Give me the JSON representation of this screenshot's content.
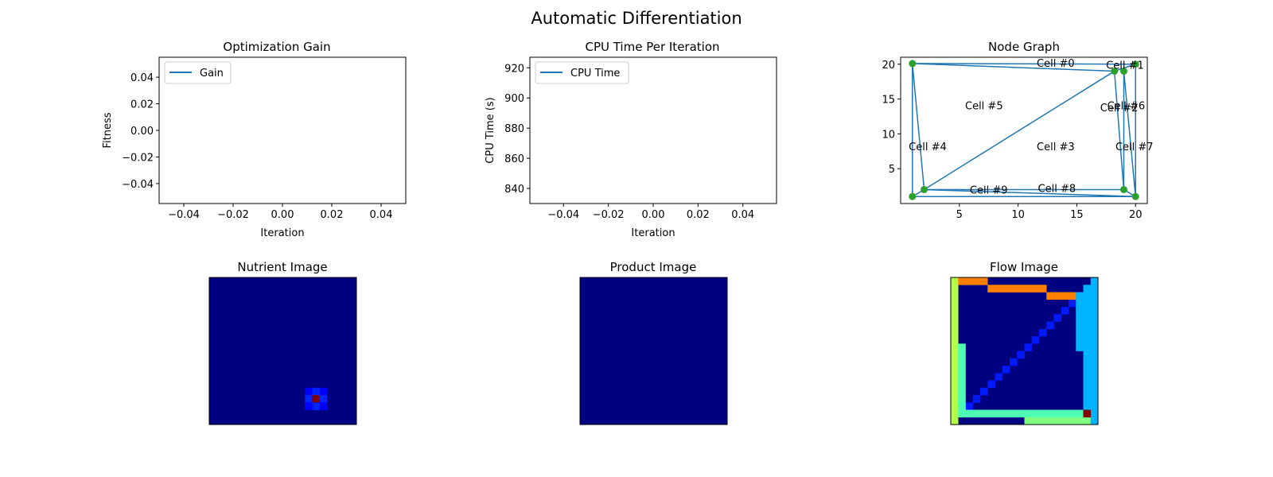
{
  "figure": {
    "suptitle": "Automatic Differentiation"
  },
  "colors": {
    "line": "#1f77b4",
    "marker": "#2ca02c",
    "axes": "#000000",
    "legend_border": "#cccccc",
    "jet_low": "#000080"
  },
  "chart_data": [
    {
      "type": "line",
      "title": "Optimization Gain",
      "xlabel": "Iteration",
      "ylabel": "Fitness",
      "xlim": [
        -0.05,
        0.05
      ],
      "ylim": [
        -0.055,
        0.055
      ],
      "xticks": [
        "−0.04",
        "−0.02",
        "0.00",
        "0.02",
        "0.04"
      ],
      "yticks": [
        "−0.04",
        "−0.02",
        "0.00",
        "0.02",
        "0.04"
      ],
      "legend": "upper left",
      "series": [
        {
          "name": "Gain",
          "x": [],
          "y": []
        }
      ]
    },
    {
      "type": "line",
      "title": "CPU Time Per Iteration",
      "xlabel": "Iteration",
      "ylabel": "CPU Time (s)",
      "xlim": [
        -0.055,
        0.055
      ],
      "ylim": [
        830,
        927
      ],
      "xticks": [
        "−0.04",
        "−0.02",
        "0.00",
        "0.02",
        "0.04"
      ],
      "yticks": [
        "840",
        "860",
        "880",
        "900",
        "920"
      ],
      "legend": "upper left",
      "series": [
        {
          "name": "CPU Time",
          "x": [],
          "y": []
        }
      ]
    },
    {
      "type": "scatter",
      "title": "Node Graph",
      "xlim": [
        0,
        21
      ],
      "ylim": [
        0,
        21
      ],
      "xticks": [
        "5",
        "10",
        "15",
        "20"
      ],
      "yticks": [
        "5",
        "10",
        "15",
        "20"
      ],
      "nodes": [
        {
          "x": 1,
          "y": 20.1
        },
        {
          "x": 18.2,
          "y": 19
        },
        {
          "x": 19,
          "y": 19
        },
        {
          "x": 20,
          "y": 20
        },
        {
          "x": 2,
          "y": 2
        },
        {
          "x": 1,
          "y": 1
        },
        {
          "x": 19,
          "y": 2
        },
        {
          "x": 20,
          "y": 1
        }
      ],
      "edges": [
        [
          [
            1,
            20.1
          ],
          [
            20,
            20
          ]
        ],
        [
          [
            1,
            20.1
          ],
          [
            18.2,
            19
          ]
        ],
        [
          [
            1,
            20.1
          ],
          [
            1,
            1
          ]
        ],
        [
          [
            1,
            20.1
          ],
          [
            2,
            2
          ]
        ],
        [
          [
            20,
            20
          ],
          [
            18.2,
            19
          ]
        ],
        [
          [
            20,
            20
          ],
          [
            20,
            1
          ]
        ],
        [
          [
            18.2,
            19
          ],
          [
            2,
            2
          ]
        ],
        [
          [
            18.2,
            19
          ],
          [
            19,
            2
          ]
        ],
        [
          [
            19,
            19
          ],
          [
            19,
            2
          ]
        ],
        [
          [
            19,
            19
          ],
          [
            20,
            1
          ]
        ],
        [
          [
            2,
            2
          ],
          [
            19,
            2
          ]
        ],
        [
          [
            2,
            2
          ],
          [
            20,
            1
          ]
        ],
        [
          [
            1,
            1
          ],
          [
            20,
            1
          ]
        ],
        [
          [
            1,
            1
          ],
          [
            2,
            2
          ]
        ],
        [
          [
            19,
            2
          ],
          [
            20,
            1
          ]
        ]
      ],
      "labels": [
        {
          "text": "Cell #0",
          "x": 13.2,
          "y": 20.1
        },
        {
          "text": "Cell #1",
          "x": 19.1,
          "y": 19.8
        },
        {
          "text": "Cell #2",
          "x": 18.6,
          "y": 13.7
        },
        {
          "text": "Cell #3",
          "x": 13.2,
          "y": 8.1
        },
        {
          "text": "Cell #4",
          "x": 2.3,
          "y": 8.1
        },
        {
          "text": "Cell #5",
          "x": 7.1,
          "y": 14.0
        },
        {
          "text": "Cell #6",
          "x": 19.2,
          "y": 14.0
        },
        {
          "text": "Cell #7",
          "x": 19.9,
          "y": 8.1
        },
        {
          "text": "Cell #8",
          "x": 13.3,
          "y": 2.1
        },
        {
          "text": "Cell #9",
          "x": 7.5,
          "y": 1.9
        }
      ]
    },
    {
      "type": "heatmap",
      "title": "Nutrient Image",
      "size": 20,
      "background": 0.0,
      "cells": [
        {
          "r": 15,
          "c": 13,
          "v": 0.12
        },
        {
          "r": 15,
          "c": 14,
          "v": 0.16
        },
        {
          "r": 15,
          "c": 15,
          "v": 0.12
        },
        {
          "r": 16,
          "c": 13,
          "v": 0.16
        },
        {
          "r": 16,
          "c": 14,
          "v": 1.0
        },
        {
          "r": 16,
          "c": 15,
          "v": 0.16
        },
        {
          "r": 17,
          "c": 13,
          "v": 0.12
        },
        {
          "r": 17,
          "c": 14,
          "v": 0.16
        },
        {
          "r": 17,
          "c": 15,
          "v": 0.12
        }
      ]
    },
    {
      "type": "heatmap",
      "title": "Product Image",
      "size": 20,
      "background": 0.0,
      "cells": []
    },
    {
      "type": "heatmap",
      "title": "Flow Image",
      "size": 20,
      "background": 0.0,
      "diagonal": {
        "from": 2,
        "to": 16,
        "v": 0.15
      },
      "rects": [
        {
          "r0": 0,
          "r1": 20,
          "c0": 0,
          "c1": 1,
          "v": 0.55
        },
        {
          "r0": 9,
          "r1": 19,
          "c0": 1,
          "c1": 2,
          "v": 0.45
        },
        {
          "r0": 18,
          "r1": 19,
          "c0": 2,
          "c1": 19,
          "v": 0.45
        },
        {
          "r0": 19,
          "r1": 20,
          "c0": 10,
          "c1": 19,
          "v": 0.5
        },
        {
          "r0": 0,
          "r1": 1,
          "c0": 1,
          "c1": 5,
          "v": 0.75
        },
        {
          "r0": 1,
          "r1": 2,
          "c0": 5,
          "c1": 13,
          "v": 0.75
        },
        {
          "r0": 2,
          "r1": 3,
          "c0": 13,
          "c1": 17,
          "v": 0.75
        },
        {
          "r0": 2,
          "r1": 10,
          "c0": 17,
          "c1": 18,
          "v": 0.3
        },
        {
          "r0": 1,
          "r1": 18,
          "c0": 18,
          "c1": 19,
          "v": 0.3
        },
        {
          "r0": 0,
          "r1": 20,
          "c0": 19,
          "c1": 20,
          "v": 0.3
        },
        {
          "r0": 18,
          "r1": 19,
          "c0": 18,
          "c1": 19,
          "v": 1.0
        }
      ]
    }
  ]
}
